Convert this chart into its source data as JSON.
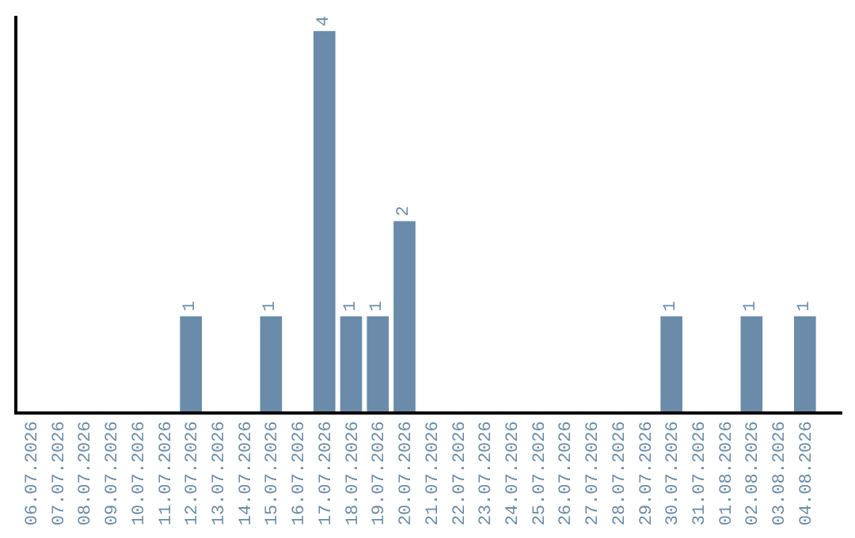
{
  "chart_data": {
    "type": "bar",
    "categories": [
      "06.07.2026",
      "07.07.2026",
      "08.07.2026",
      "09.07.2026",
      "10.07.2026",
      "11.07.2026",
      "12.07.2026",
      "13.07.2026",
      "14.07.2026",
      "15.07.2026",
      "16.07.2026",
      "17.07.2026",
      "18.07.2026",
      "19.07.2026",
      "20.07.2026",
      "21.07.2026",
      "22.07.2026",
      "23.07.2026",
      "24.07.2026",
      "25.07.2026",
      "26.07.2026",
      "27.07.2026",
      "28.07.2026",
      "29.07.2026",
      "30.07.2026",
      "31.07.2026",
      "01.08.2026",
      "02.08.2026",
      "03.08.2026",
      "04.08.2026"
    ],
    "values": [
      0,
      0,
      0,
      0,
      0,
      0,
      1,
      0,
      0,
      1,
      0,
      4,
      1,
      1,
      2,
      0,
      0,
      0,
      0,
      0,
      0,
      0,
      0,
      0,
      1,
      0,
      0,
      1,
      0,
      1
    ],
    "value_labels": [
      null,
      null,
      null,
      null,
      null,
      null,
      "1",
      null,
      null,
      "1",
      null,
      "4",
      "1",
      "1",
      "2",
      null,
      null,
      null,
      null,
      null,
      null,
      null,
      null,
      null,
      "1",
      null,
      null,
      "1",
      null,
      "1"
    ],
    "color": "#6a8caa",
    "ylim": [
      0,
      4.16
    ],
    "tick_labels": "x",
    "legend": false
  }
}
